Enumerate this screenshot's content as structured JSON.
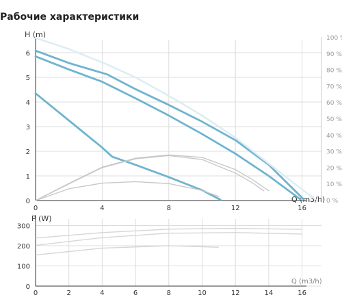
{
  "title": "Рабочие характеристики",
  "colors": {
    "pump_curve": "#6fb4cf",
    "efficiency_curve": "#c8c8c8",
    "grid": "#dcdcdc",
    "axis": "#333333",
    "right_axis_text": "#9a9a9a"
  },
  "chart_data": [
    {
      "type": "line",
      "name": "head",
      "ylabel": "H (m)",
      "xlabel": "Q (m3/h)",
      "xlim": [
        0,
        17
      ],
      "ylim": [
        0,
        6.6
      ],
      "x_ticks": [
        "0",
        "4",
        "8",
        "12",
        "16"
      ],
      "x_tick_values": [
        0,
        4,
        8,
        12,
        16
      ],
      "y_ticks": [
        "0",
        "1",
        "2",
        "3",
        "4",
        "5",
        "6"
      ],
      "y_tick_values": [
        0,
        1,
        2,
        3,
        4,
        5,
        6
      ],
      "right_axis": {
        "ticks": [
          "0 %",
          "10 %",
          "20 %",
          "30 %",
          "40 %",
          "50 %",
          "60 %",
          "70 %",
          "80 %",
          "90 %",
          "100 %"
        ],
        "ylim": [
          0,
          100
        ]
      },
      "grid": true,
      "series": [
        {
          "style": "pump-strong",
          "x": [
            0,
            2,
            4.3,
            6,
            8,
            10,
            12,
            14,
            16.1
          ],
          "y": [
            6.08,
            5.58,
            5.12,
            4.52,
            3.88,
            3.2,
            2.45,
            1.45,
            0.05
          ]
        },
        {
          "style": "pump-strong",
          "x": [
            0,
            2,
            4,
            6,
            8,
            10,
            12,
            14,
            15.9
          ],
          "y": [
            5.85,
            5.32,
            4.82,
            4.15,
            3.45,
            2.7,
            1.9,
            1.0,
            0.05
          ]
        },
        {
          "style": "pump-strong",
          "x": [
            0,
            2,
            4,
            4.6,
            6,
            8,
            10,
            11.1
          ],
          "y": [
            4.35,
            3.25,
            2.15,
            1.78,
            1.45,
            0.95,
            0.42,
            0.03
          ]
        },
        {
          "style": "pump-faint",
          "x": [
            0,
            2,
            4.2,
            6,
            8,
            10,
            12,
            14,
            16,
            16.8
          ],
          "y": [
            6.6,
            6.15,
            5.55,
            5.0,
            4.25,
            3.45,
            2.55,
            1.5,
            0.45,
            0.05
          ]
        },
        {
          "style": "efficiency",
          "axis": "right",
          "x": [
            0,
            2,
            4,
            6,
            8,
            10,
            12,
            13,
            14
          ],
          "y": [
            0,
            10.5,
            20.5,
            26.0,
            28.0,
            26.5,
            19.0,
            13.0,
            6.0
          ]
        },
        {
          "style": "efficiency",
          "axis": "right",
          "x": [
            0,
            2,
            4,
            6,
            8,
            10,
            12,
            13,
            13.7
          ],
          "y": [
            0,
            10.2,
            20.2,
            25.6,
            27.6,
            25.2,
            16.8,
            11.0,
            6.0
          ]
        },
        {
          "style": "efficiency",
          "axis": "right",
          "x": [
            0,
            2,
            4,
            6,
            8,
            10,
            11
          ],
          "y": [
            0,
            7.2,
            10.7,
            11.6,
            10.4,
            6.2,
            2.5
          ]
        }
      ]
    },
    {
      "type": "line",
      "name": "power",
      "ylabel": "P (W)",
      "xlabel": "Q (m3/h)",
      "xlim": [
        0,
        17
      ],
      "ylim": [
        0,
        330
      ],
      "x_ticks": [
        "0",
        "2",
        "4",
        "6",
        "8",
        "10",
        "12",
        "14",
        "16"
      ],
      "x_tick_values": [
        0,
        2,
        4,
        6,
        8,
        10,
        12,
        14,
        16
      ],
      "y_ticks": [
        "0",
        "100",
        "200",
        "300"
      ],
      "y_tick_values": [
        0,
        100,
        200,
        300
      ],
      "grid": true,
      "series": [
        {
          "style": "power",
          "x": [
            0,
            4,
            8,
            12,
            16
          ],
          "y": [
            238,
            265,
            282,
            286,
            281
          ]
        },
        {
          "style": "power",
          "x": [
            0,
            4,
            8,
            12,
            16
          ],
          "y": [
            202,
            240,
            262,
            265,
            258
          ]
        },
        {
          "style": "power",
          "x": [
            0,
            4,
            8,
            11
          ],
          "y": [
            154,
            188,
            200,
            192
          ]
        }
      ]
    }
  ]
}
